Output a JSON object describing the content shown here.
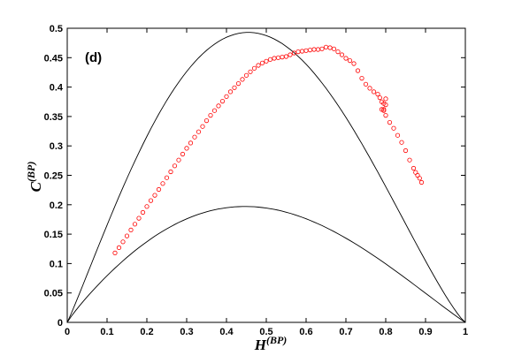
{
  "chart_data": {
    "type": "scatter",
    "panel_label": "(d)",
    "xlabel": {
      "base": "H",
      "sup": "(BP)"
    },
    "ylabel": {
      "base": "C",
      "sup": "(BP)"
    },
    "xlim": [
      0,
      1
    ],
    "ylim": [
      0,
      0.5
    ],
    "x_ticks": [
      "0",
      "0.1",
      "0.2",
      "0.3",
      "0.4",
      "0.5",
      "0.6",
      "0.7",
      "0.8",
      "0.9",
      "1"
    ],
    "y_ticks": [
      "0",
      "0.05",
      "0.1",
      "0.15",
      "0.2",
      "0.25",
      "0.3",
      "0.35",
      "0.4",
      "0.45",
      "0.5"
    ],
    "grid": false,
    "bound_color": "#000000",
    "series": [
      {
        "marker": "open-circle",
        "color": "#ff0000",
        "x": [
          0.12,
          0.13,
          0.14,
          0.15,
          0.16,
          0.17,
          0.18,
          0.19,
          0.2,
          0.21,
          0.22,
          0.23,
          0.24,
          0.25,
          0.26,
          0.27,
          0.28,
          0.29,
          0.3,
          0.31,
          0.32,
          0.33,
          0.34,
          0.35,
          0.36,
          0.37,
          0.38,
          0.39,
          0.4,
          0.41,
          0.42,
          0.43,
          0.44,
          0.45,
          0.46,
          0.47,
          0.48,
          0.49,
          0.5,
          0.51,
          0.52,
          0.53,
          0.54,
          0.55,
          0.56,
          0.57,
          0.58,
          0.59,
          0.6,
          0.61,
          0.62,
          0.63,
          0.64,
          0.65,
          0.66,
          0.67,
          0.68,
          0.69,
          0.7,
          0.71,
          0.72,
          0.73,
          0.74,
          0.75,
          0.76,
          0.77,
          0.78,
          0.785,
          0.79,
          0.795,
          0.8,
          0.8,
          0.795,
          0.79,
          0.795,
          0.8,
          0.81,
          0.82,
          0.83,
          0.84,
          0.85,
          0.86,
          0.87,
          0.875,
          0.88,
          0.885,
          0.89
        ],
        "y": [
          0.118,
          0.127,
          0.137,
          0.147,
          0.157,
          0.167,
          0.177,
          0.187,
          0.197,
          0.207,
          0.216,
          0.226,
          0.236,
          0.246,
          0.256,
          0.266,
          0.276,
          0.286,
          0.296,
          0.305,
          0.315,
          0.324,
          0.333,
          0.343,
          0.352,
          0.36,
          0.368,
          0.376,
          0.384,
          0.392,
          0.399,
          0.406,
          0.413,
          0.42,
          0.426,
          0.432,
          0.437,
          0.441,
          0.444,
          0.447,
          0.449,
          0.45,
          0.451,
          0.452,
          0.455,
          0.458,
          0.46,
          0.461,
          0.462,
          0.463,
          0.464,
          0.464,
          0.465,
          0.468,
          0.467,
          0.465,
          0.46,
          0.455,
          0.449,
          0.445,
          0.44,
          0.428,
          0.415,
          0.405,
          0.398,
          0.392,
          0.388,
          0.382,
          0.375,
          0.372,
          0.38,
          0.37,
          0.362,
          0.362,
          0.36,
          0.352,
          0.34,
          0.33,
          0.318,
          0.306,
          0.292,
          0.276,
          0.262,
          0.255,
          0.25,
          0.245,
          0.238
        ]
      }
    ]
  }
}
